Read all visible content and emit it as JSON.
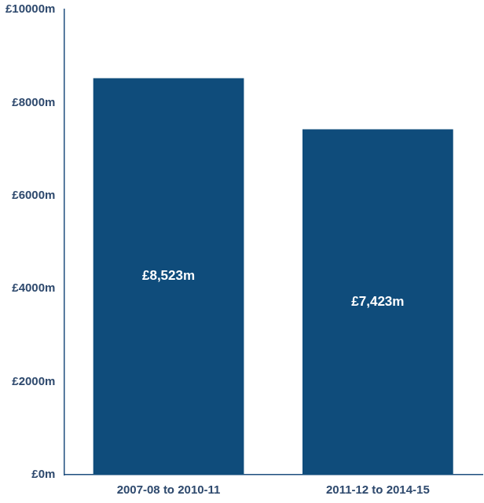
{
  "chart_data": {
    "type": "bar",
    "categories": [
      "2007-08 to 2010-11",
      "2011-12 to 2014-15"
    ],
    "values": [
      8523,
      7423
    ],
    "value_labels": [
      "£8,523m",
      "£7,423m"
    ],
    "data_labels": true,
    "color": "#0f4c7b",
    "ylim": [
      0,
      10000
    ],
    "yticks": [
      {
        "value": 0,
        "label": "£0m"
      },
      {
        "value": 2000,
        "label": "£2000m"
      },
      {
        "value": 4000,
        "label": "£4000m"
      },
      {
        "value": 6000,
        "label": "£6000m"
      },
      {
        "value": 8000,
        "label": "£8000m"
      },
      {
        "value": 10000,
        "label": "£10000m"
      }
    ],
    "grid": false
  }
}
